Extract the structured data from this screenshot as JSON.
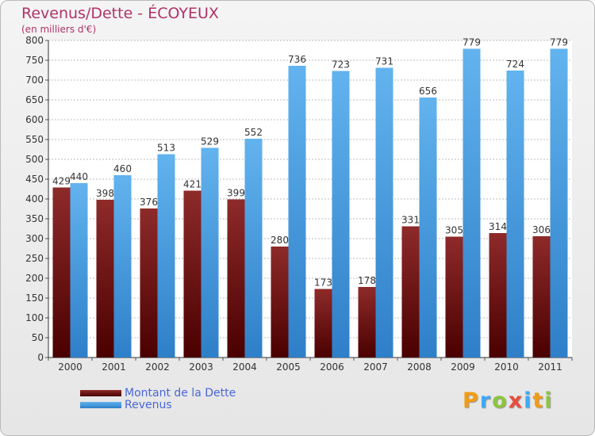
{
  "title": "Revenus/Dette - ÉCOYEUX",
  "subtitle": "(en milliers d'€)",
  "logo_letters": [
    {
      "ch": "P",
      "color": "#f39c12"
    },
    {
      "ch": "r",
      "color": "#3fa9f5"
    },
    {
      "ch": "o",
      "color": "#8cc63f"
    },
    {
      "ch": "x",
      "color": "#e84c3d"
    },
    {
      "ch": "i",
      "color": "#3fa9f5"
    },
    {
      "ch": "t",
      "color": "#f39c12"
    },
    {
      "ch": "i",
      "color": "#8cc63f"
    }
  ],
  "colors": {
    "dette_top": "#8e2a2a",
    "dette_bottom": "#4a0000",
    "revenus_top": "#62b3ee",
    "revenus_bottom": "#2e7fc8",
    "grid": "#bcbcbc",
    "axis_text": "#333333"
  },
  "chart_data": {
    "type": "bar",
    "title": "Revenus/Dette - ÉCOYEUX",
    "ylabel": "(en milliers d'€)",
    "xlabel": "",
    "ylim": [
      0,
      800
    ],
    "ytick_step": 50,
    "grid": true,
    "legend_position": "bottom-left",
    "categories": [
      "2000",
      "2001",
      "2002",
      "2003",
      "2004",
      "2005",
      "2006",
      "2007",
      "2008",
      "2009",
      "2010",
      "2011"
    ],
    "series": [
      {
        "name": "Montant de la Dette",
        "values": [
          429,
          398,
          376,
          421,
          399,
          280,
          173,
          178,
          331,
          305,
          314,
          306
        ]
      },
      {
        "name": "Revenus",
        "values": [
          440,
          460,
          513,
          529,
          552,
          736,
          723,
          731,
          656,
          779,
          724,
          779
        ]
      }
    ]
  }
}
